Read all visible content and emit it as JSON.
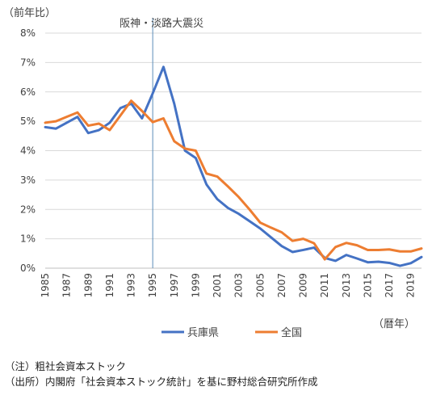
{
  "chart_data": {
    "type": "line",
    "y_unit_label": "（前年比）",
    "x_unit_label": "（暦年）",
    "annotation": {
      "label": "阪神・淡路大震災",
      "x": 1995
    },
    "x": [
      1985,
      1986,
      1987,
      1988,
      1989,
      1990,
      1991,
      1992,
      1993,
      1994,
      1995,
      1996,
      1997,
      1998,
      1999,
      2000,
      2001,
      2002,
      2003,
      2004,
      2005,
      2006,
      2007,
      2008,
      2009,
      2010,
      2011,
      2012,
      2013,
      2014,
      2015,
      2016,
      2017,
      2018,
      2019,
      2020
    ],
    "x_ticks": [
      1985,
      1987,
      1989,
      1991,
      1993,
      1995,
      1997,
      1999,
      2001,
      2003,
      2005,
      2007,
      2009,
      2011,
      2013,
      2015,
      2017,
      2019
    ],
    "y_ticks": [
      "0%",
      "1%",
      "2%",
      "3%",
      "4%",
      "5%",
      "6%",
      "7%",
      "8%"
    ],
    "ylim": [
      0,
      8
    ],
    "grid": "horizontal",
    "legend_position": "bottom",
    "series": [
      {
        "name": "兵庫県",
        "color": "#4472C4",
        "values": [
          4.8,
          4.75,
          4.95,
          5.15,
          4.6,
          4.7,
          4.95,
          5.45,
          5.6,
          5.1,
          5.95,
          6.85,
          5.6,
          4.0,
          3.75,
          2.85,
          2.35,
          2.05,
          1.85,
          1.6,
          1.35,
          1.05,
          0.75,
          0.55,
          0.62,
          0.7,
          0.35,
          0.25,
          0.45,
          0.33,
          0.2,
          0.22,
          0.18,
          0.08,
          0.17,
          0.38
        ]
      },
      {
        "name": "全国",
        "color": "#ED7D31",
        "values": [
          4.95,
          5.0,
          5.15,
          5.3,
          4.85,
          4.92,
          4.7,
          5.2,
          5.7,
          5.35,
          4.97,
          5.1,
          4.32,
          4.07,
          4.0,
          3.22,
          3.12,
          2.78,
          2.42,
          2.0,
          1.55,
          1.38,
          1.22,
          0.93,
          1.0,
          0.85,
          0.3,
          0.72,
          0.86,
          0.78,
          0.62,
          0.62,
          0.64,
          0.57,
          0.57,
          0.67
        ]
      }
    ]
  },
  "notes": {
    "line1": "（注）粗社会資本ストック",
    "line2": "（出所）内閣府「社会資本ストック統計」を基に野村総合研究所作成"
  }
}
